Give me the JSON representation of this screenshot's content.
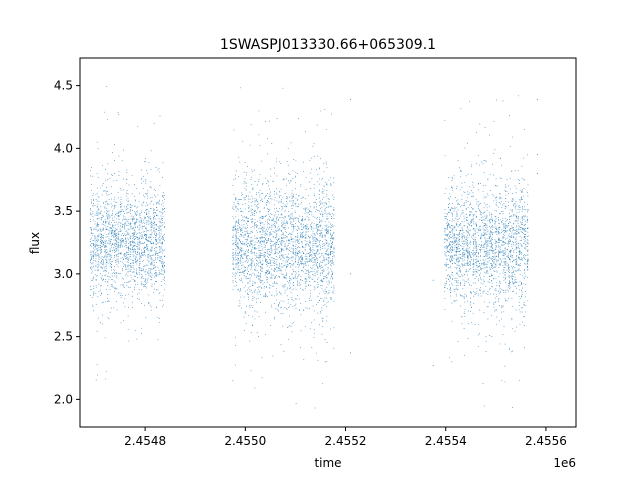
{
  "chart_data": {
    "type": "scatter",
    "title": "1SWASPJ013330.66+065309.1",
    "xlabel": "time",
    "ylabel": "flux",
    "x_offset_label": "1e6",
    "x_range": [
      2454670,
      2455660
    ],
    "ylim": [
      1.78,
      4.72
    ],
    "x_ticks": [
      2454800,
      2455000,
      2455200,
      2455400,
      2455600
    ],
    "x_tick_labels": [
      "2.4548",
      "2.4550",
      "2.4552",
      "2.4554",
      "2.4556"
    ],
    "y_ticks": [
      2.0,
      2.5,
      3.0,
      3.5,
      4.0,
      4.5
    ],
    "y_tick_labels": [
      "2.0",
      "2.5",
      "3.0",
      "3.5",
      "4.0",
      "4.5"
    ],
    "grid": false,
    "legend": "none",
    "marker_color": "#1f77b4",
    "marker": "point",
    "series": [
      {
        "observing_seasons": [
          {
            "x_start": 2454690,
            "x_end": 2454840,
            "median": 3.24,
            "sigma": 0.2,
            "min": 1.92,
            "max": 4.57
          },
          {
            "x_start": 2454975,
            "x_end": 2455178,
            "median": 3.23,
            "sigma": 0.24,
            "min": 1.93,
            "max": 4.59
          },
          {
            "x_start": 2455398,
            "x_end": 2455566,
            "median": 3.22,
            "sigma": 0.23,
            "min": 1.92,
            "max": 4.57
          }
        ],
        "isolated_points": [
          {
            "x": 2455210,
            "y": 4.39
          },
          {
            "x": 2455210,
            "y": 3.0
          },
          {
            "x": 2455210,
            "y": 2.37
          },
          {
            "x": 2455375,
            "y": 2.95
          },
          {
            "x": 2455375,
            "y": 2.27
          },
          {
            "x": 2455583,
            "y": 4.39
          },
          {
            "x": 2455583,
            "y": 3.95
          },
          {
            "x": 2455583,
            "y": 3.8
          }
        ]
      }
    ]
  }
}
